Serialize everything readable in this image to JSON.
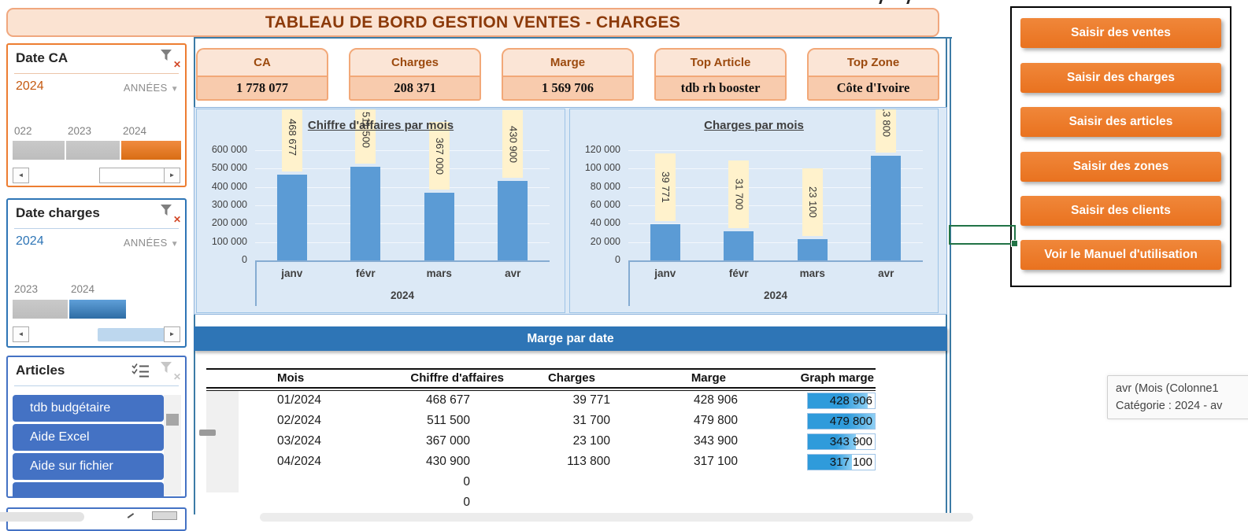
{
  "title": "TABLEAU DE BORD GESTION VENTES - CHARGES",
  "slicers": {
    "date_ca": {
      "title": "Date CA",
      "selected_label": "2024",
      "granularity_label": "ANNÉES",
      "timeline": [
        {
          "label": "022",
          "selected": false
        },
        {
          "label": "2023",
          "selected": false
        },
        {
          "label": "2024",
          "selected": true
        }
      ]
    },
    "date_charges": {
      "title": "Date charges",
      "selected_label": "2024",
      "granularity_label": "ANNÉES",
      "timeline": [
        {
          "label": "2023",
          "selected": false
        },
        {
          "label": "2024",
          "selected": true
        }
      ]
    },
    "articles": {
      "title": "Articles",
      "items": [
        {
          "label": "tdb budgétaire"
        },
        {
          "label": "Aide Excel"
        },
        {
          "label": "Aide sur fichier"
        },
        {
          "label": ""
        }
      ]
    }
  },
  "kpis": [
    {
      "label": "CA",
      "value": "1 778 077"
    },
    {
      "label": "Charges",
      "value": "208 371"
    },
    {
      "label": "Marge",
      "value": "1 569 706"
    },
    {
      "label": "Top Article",
      "value": "tdb rh booster"
    },
    {
      "label": "Top Zone",
      "value": "Côte d'Ivoire"
    }
  ],
  "chart_data": [
    {
      "type": "bar",
      "title": "Chiffre d'affaires par mois",
      "categories": [
        "janv",
        "févr",
        "mars",
        "avr"
      ],
      "values": [
        468677,
        511500,
        367000,
        430900
      ],
      "group_label": "2024",
      "xlabel": "2024",
      "ylabel": "",
      "ylim": [
        0,
        600000
      ],
      "ytick_step": 100000,
      "grid": true,
      "legend_position": "none",
      "bar_color": "#5b9bd5",
      "data_label_bg": "#fff2cc"
    },
    {
      "type": "bar",
      "title": "Charges par mois",
      "categories": [
        "janv",
        "févr",
        "mars",
        "avr"
      ],
      "values": [
        39771,
        31700,
        23100,
        113800
      ],
      "group_label": "2024",
      "xlabel": "2024",
      "ylabel": "",
      "ylim": [
        0,
        120000
      ],
      "ytick_step": 20000,
      "grid": true,
      "legend_position": "none",
      "bar_color": "#5b9bd5",
      "data_label_bg": "#fff2cc"
    }
  ],
  "banner": {
    "label": "Marge par date"
  },
  "table": {
    "headers": [
      "Mois",
      "Chiffre d'affaires",
      "Charges",
      "Marge",
      "Graph marge"
    ],
    "graph_max": 479800,
    "rows": [
      {
        "mois": "01/2024",
        "ca": "468 677",
        "charges": "39 771",
        "marge": "428 906",
        "graph": 428906,
        "graph_label": "428 906"
      },
      {
        "mois": "02/2024",
        "ca": "511 500",
        "charges": "31 700",
        "marge": "479 800",
        "graph": 479800,
        "graph_label": "479 800"
      },
      {
        "mois": "03/2024",
        "ca": "367 000",
        "charges": "23 100",
        "marge": "343 900",
        "graph": 343900,
        "graph_label": "343 900"
      },
      {
        "mois": "04/2024",
        "ca": "430 900",
        "charges": "113 800",
        "marge": "317 100",
        "graph": 317100,
        "graph_label": "317 100"
      },
      {
        "mois": "",
        "ca": "0",
        "charges": "",
        "marge": "",
        "graph": null,
        "graph_label": ""
      },
      {
        "mois": "",
        "ca": "0",
        "charges": "",
        "marge": "",
        "graph": null,
        "graph_label": ""
      }
    ]
  },
  "action_buttons": [
    "Saisir des ventes",
    "Saisir des charges",
    "Saisir des articles",
    "Saisir des zones",
    "Saisir des clients",
    "Voir le Manuel d'utilisation"
  ],
  "tooltip": {
    "line1": "avr (Mois (Colonne1",
    "line2": "Catégorie : 2024 - av"
  },
  "colors": {
    "accent_orange": "#ed7d31",
    "accent_blue": "#2e75b6",
    "bar_blue": "#5b9bd5",
    "articles_blue": "#4472c4",
    "label_cream": "#fff2cc",
    "selection_green": "#217346",
    "card_peach": "#f8cbad"
  }
}
